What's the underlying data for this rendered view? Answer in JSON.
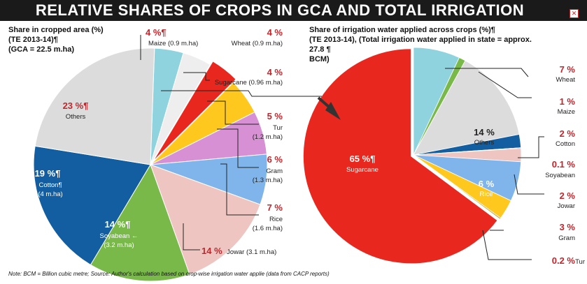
{
  "banner": {
    "title": "RELATIVE SHARES OF CROPS IN GCA AND TOTAL IRRIGATION",
    "close_glyph": "✕"
  },
  "left_subtitle": [
    "Share in cropped area (%)",
    "(TE 2013-14)¶",
    "(GCA = 22.5 m.ha)"
  ],
  "right_subtitle": [
    "Share of irrigation water applied across crops (%)¶",
    "(TE 2013-14), (Total irrigation water applied in state = approx.",
    "27.8 ¶",
    "BCM)"
  ],
  "note": "Note: BCM = Billion cubic metre; Source: Author's calculation based on crop-wise irrigation water applie (data from CACP reports)",
  "colors": {
    "maize": "#8fd3df",
    "wheat": "#eeeeee",
    "sugarcane": "#e8281e",
    "tur": "#ffc81e",
    "gram": "#d890d4",
    "rice": "#7fb5ea",
    "jowar": "#eec5c0",
    "soyabean": "#79b94a",
    "cotton": "#125ea0",
    "others": "#dcdcdc",
    "wheat_right": "#8fd3df",
    "maize_right": "#79b94a",
    "label_red": "#c0272d"
  },
  "chart_data": [
    {
      "type": "pie",
      "title": "Share in cropped area (%)",
      "slices": [
        {
          "name": "Maize",
          "value": 4,
          "pct": "4 %¶",
          "detail": "Maize (0.9 m.ha)"
        },
        {
          "name": "Wheat",
          "value": 4,
          "pct": "4 %",
          "detail": "Wheat (0.9 m.ha)"
        },
        {
          "name": "Sugarcane",
          "value": 4,
          "pct": "4 %",
          "detail": "Sugarcane (0.96 m.ha)"
        },
        {
          "name": "Tur",
          "value": 5,
          "pct": "5 %",
          "detail": "Tur",
          "detail2": "(1.2 m.ha)"
        },
        {
          "name": "Gram",
          "value": 6,
          "pct": "6 %",
          "detail": "Gram",
          "detail2": "(1.3 m.ha)"
        },
        {
          "name": "Rice",
          "value": 7,
          "pct": "7 %",
          "detail": "Rice",
          "detail2": "(1.6 m.ha)"
        },
        {
          "name": "Jowar",
          "value": 14,
          "pct": "14 %",
          "detail": "Jowar (3.1 m.ha)"
        },
        {
          "name": "Soyabean",
          "value": 14,
          "pct": "14 %¶",
          "detail": "Soyabean ←",
          "detail2": "(3.2 m.ha)"
        },
        {
          "name": "Cotton",
          "value": 19,
          "pct": "19 %¶",
          "detail": "Cotton¶",
          "detail2": "(4 m.ha)"
        },
        {
          "name": "Others",
          "value": 23,
          "pct": "23 %¶",
          "detail": "Others"
        }
      ]
    },
    {
      "type": "pie",
      "title": "Share of irrigation water applied across crops (%)",
      "slices": [
        {
          "name": "Wheat",
          "value": 7,
          "pct": "7 %",
          "detail": "Wheat"
        },
        {
          "name": "Maize",
          "value": 1,
          "pct": "1 %",
          "detail": "Maize"
        },
        {
          "name": "Others",
          "value": 14,
          "pct": "14 %",
          "detail": "Others"
        },
        {
          "name": "Cotton",
          "value": 2,
          "pct": "2 %",
          "detail": "Cotton"
        },
        {
          "name": "Soyabean",
          "value": 0.1,
          "pct": "0.1 %",
          "detail": "Soyabean"
        },
        {
          "name": "Jowar",
          "value": 2,
          "pct": "2 %",
          "detail": "Jowar"
        },
        {
          "name": "Rice",
          "value": 6,
          "pct": "6 %",
          "detail": "Rice"
        },
        {
          "name": "Gram",
          "value": 3,
          "pct": "3 %",
          "detail": "Gram"
        },
        {
          "name": "Tur",
          "value": 0.2,
          "pct": "0.2 %",
          "detail": "Tur"
        },
        {
          "name": "Sugarcane",
          "value": 65,
          "pct": "65 %¶",
          "detail": "Sugarcane"
        }
      ]
    }
  ]
}
